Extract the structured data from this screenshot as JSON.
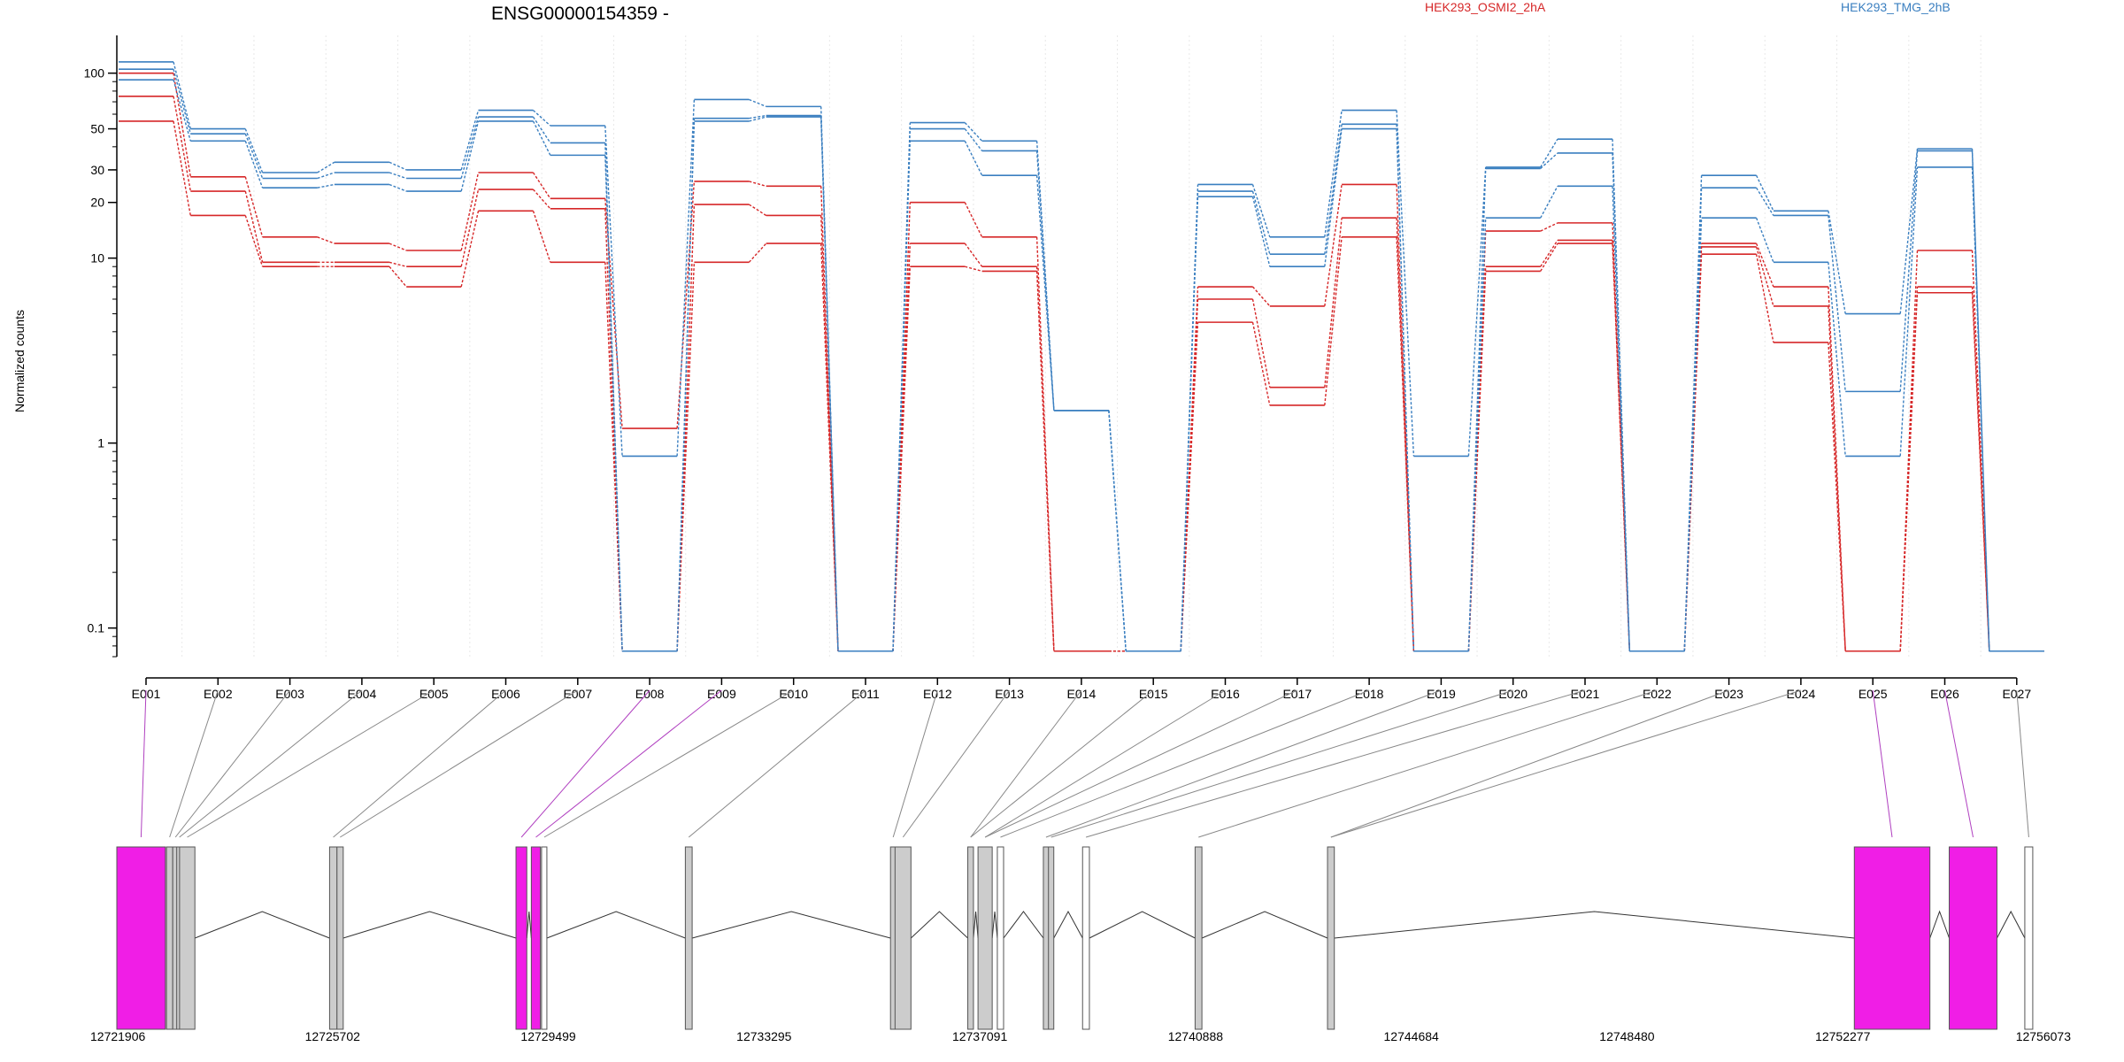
{
  "chart_data": {
    "type": "line",
    "title": "ENSG00000154359 -",
    "ylabel": "Normalized counts",
    "yscale": "log",
    "ylim": [
      0.07,
      160
    ],
    "yticks": [
      "0.1",
      "1",
      "10",
      "20",
      "30",
      "50",
      "100"
    ],
    "categories": [
      "E001",
      "E002",
      "E003",
      "E004",
      "E005",
      "E006",
      "E007",
      "E008",
      "E009",
      "E010",
      "E011",
      "E012",
      "E013",
      "E014",
      "E015",
      "E016",
      "E017",
      "E018",
      "E019",
      "E020",
      "E021",
      "E022",
      "E023",
      "E024",
      "E025",
      "E026",
      "E027"
    ],
    "groups": [
      {
        "name": "HEK293_OSMI2_2hA",
        "color": "#d62728"
      },
      {
        "name": "HEK293_TMG_2hB",
        "color": "#3a7fc0"
      }
    ],
    "series": [
      {
        "group": 0,
        "values": [
          100,
          27.5,
          13,
          12,
          11,
          29,
          21,
          1.2,
          26,
          24.5,
          0.075,
          20,
          13,
          0.075,
          0.075,
          7,
          5.5,
          25,
          0.075,
          14,
          15.5,
          0.075,
          12,
          7,
          0.075,
          11,
          0.075
        ]
      },
      {
        "group": 0,
        "values": [
          75,
          23,
          9.5,
          9.5,
          9,
          23.5,
          18.5,
          0.075,
          19.5,
          17,
          0.075,
          12,
          9,
          0.075,
          0.075,
          6,
          2,
          16.5,
          0.075,
          9,
          12.5,
          0.075,
          11.5,
          5.5,
          0.075,
          7,
          0.075
        ]
      },
      {
        "group": 0,
        "values": [
          55,
          17,
          9,
          9,
          7,
          18,
          9.5,
          0.075,
          9.5,
          12,
          0.075,
          9,
          8.5,
          0.075,
          0.075,
          4.5,
          1.6,
          13,
          0.075,
          8.5,
          12,
          0.075,
          10.5,
          3.5,
          0.075,
          6.5,
          0.075
        ]
      },
      {
        "group": 1,
        "values": [
          115,
          50,
          29,
          33,
          30,
          63,
          52,
          0.85,
          72,
          66,
          0.075,
          54,
          43,
          1.5,
          0.075,
          25,
          13,
          63,
          0.85,
          31,
          44,
          0.075,
          28,
          18,
          5,
          39,
          0.075
        ]
      },
      {
        "group": 1,
        "values": [
          105,
          47,
          27,
          29,
          27,
          58,
          42,
          0.075,
          57,
          59,
          0.075,
          50,
          38,
          1.5,
          0.075,
          23,
          10.5,
          53,
          0.075,
          30.5,
          37,
          0.075,
          24,
          17,
          1.9,
          38,
          0.075
        ]
      },
      {
        "group": 1,
        "values": [
          92,
          43,
          24,
          25,
          23,
          55,
          36,
          0.075,
          55,
          58,
          0.075,
          43,
          28,
          1.5,
          0.075,
          21.5,
          9,
          50,
          0.075,
          16.5,
          24.5,
          0.075,
          16.5,
          9.5,
          0.85,
          31,
          0.075
        ]
      }
    ],
    "gene_model": {
      "start_label": "12721906",
      "coordinates": [
        "12721906",
        "12725702",
        "12729499",
        "12733295",
        "12737091",
        "12740888",
        "12744684",
        "12748480",
        "12752277",
        "12756073"
      ],
      "genomic_range": [
        12721906,
        12756073
      ],
      "exon_colors": {
        "tested": "#cccccc",
        "significant": "#f01ee6",
        "untested": "#ffffff"
      },
      "exons": [
        {
          "id": "E001",
          "start": 12721906,
          "end": 12722760,
          "status": "significant"
        },
        {
          "id": "E002",
          "start": 12722780,
          "end": 12722890,
          "status": "tested"
        },
        {
          "id": "E003",
          "start": 12722890,
          "end": 12722960,
          "status": "tested"
        },
        {
          "id": "E004",
          "start": 12722960,
          "end": 12723010,
          "status": "tested"
        },
        {
          "id": "E005",
          "start": 12723010,
          "end": 12723280,
          "status": "tested"
        },
        {
          "id": "E006",
          "start": 12725650,
          "end": 12725780,
          "status": "tested"
        },
        {
          "id": "E007",
          "start": 12725780,
          "end": 12725890,
          "status": "tested"
        },
        {
          "id": "E008",
          "start": 12728930,
          "end": 12729120,
          "status": "significant"
        },
        {
          "id": "E009",
          "start": 12729200,
          "end": 12729360,
          "status": "significant"
        },
        {
          "id": "E010",
          "start": 12729380,
          "end": 12729470,
          "status": "untested"
        },
        {
          "id": "E011",
          "start": 12731910,
          "end": 12732030,
          "status": "tested"
        },
        {
          "id": "E012",
          "start": 12735520,
          "end": 12735600,
          "status": "tested"
        },
        {
          "id": "E013",
          "start": 12735600,
          "end": 12735880,
          "status": "tested"
        },
        {
          "id": "E014",
          "start": 12736880,
          "end": 12736980,
          "status": "tested"
        },
        {
          "id": "E015",
          "start": 12737060,
          "end": 12737310,
          "status": "tested"
        },
        {
          "id": "E016",
          "start": 12737400,
          "end": 12737510,
          "status": "untested"
        },
        {
          "id": "E017",
          "start": 12738210,
          "end": 12738300,
          "status": "tested"
        },
        {
          "id": "E018",
          "start": 12738300,
          "end": 12738360,
          "status": "tested"
        },
        {
          "id": "E019",
          "start": 12738900,
          "end": 12739020,
          "status": "untested"
        },
        {
          "id": "E020",
          "start": 12740880,
          "end": 12741000,
          "status": "tested"
        },
        {
          "id": "E021",
          "start": 12743210,
          "end": 12743330,
          "status": "tested"
        },
        {
          "id": "E022",
          "start": 12752480,
          "end": 12753810,
          "status": "significant"
        },
        {
          "id": "E023",
          "start": 12754150,
          "end": 12754990,
          "status": "significant"
        },
        {
          "id": "E024",
          "start": 12755480,
          "end": 12755620,
          "status": "untested"
        }
      ],
      "links": [
        {
          "label": "E001",
          "exon": 0
        },
        {
          "label": "E002",
          "exon": 1
        },
        {
          "label": "E003",
          "exon": 2
        },
        {
          "label": "E004",
          "exon": 3
        },
        {
          "label": "E005",
          "exon": 4
        },
        {
          "label": "E006",
          "exon": 5
        },
        {
          "label": "E007",
          "exon": 6
        },
        {
          "label": "E008",
          "exon": 7
        },
        {
          "label": "E009",
          "exon": 8
        },
        {
          "label": "E010",
          "exon": 9
        },
        {
          "label": "E011",
          "exon": 10
        },
        {
          "label": "E012",
          "exon": 11
        },
        {
          "label": "E013",
          "exon": 12
        },
        {
          "label": "E014",
          "exon": 13
        },
        {
          "label": "E015",
          "exon": 13
        },
        {
          "label": "E016",
          "exon": 14
        },
        {
          "label": "E017",
          "exon": 14
        },
        {
          "label": "E018",
          "exon": 15
        },
        {
          "label": "E019",
          "exon": 16
        },
        {
          "label": "E020",
          "exon": 17
        },
        {
          "label": "E021",
          "exon": 18
        },
        {
          "label": "E022",
          "exon": 19
        },
        {
          "label": "E023",
          "exon": 20
        },
        {
          "label": "E024",
          "exon": 20
        },
        {
          "label": "E025",
          "exon": 21
        },
        {
          "label": "E026",
          "exon": 22
        },
        {
          "label": "E027",
          "exon": 23
        }
      ]
    }
  }
}
